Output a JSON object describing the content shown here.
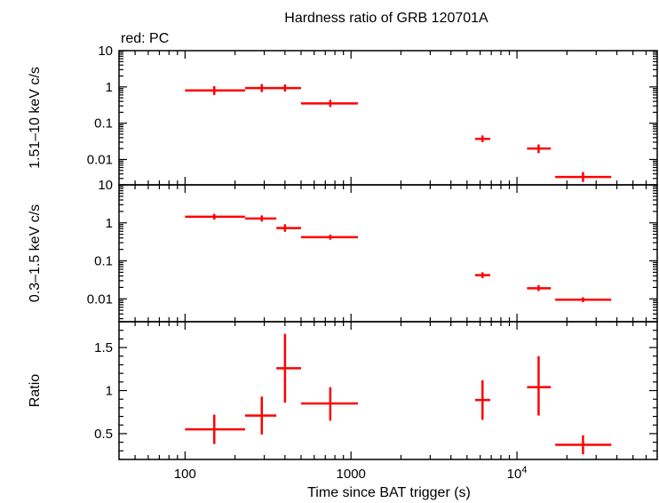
{
  "chart_data": {
    "type": "scatter",
    "title": "Hardness ratio of GRB 120701A",
    "legend": "red: PC",
    "series_color": "#ff0000",
    "xlabel": "Time since BAT trigger (s)",
    "xscale": "log",
    "xlim": [
      40,
      70000
    ],
    "xticks": [
      {
        "value": 100,
        "label": "100"
      },
      {
        "value": 1000,
        "label": "1000"
      },
      {
        "value": 10000,
        "label": "10",
        "sup": "4"
      }
    ],
    "panels": [
      {
        "name": "hard",
        "ylabel": "1.51–10 keV c/s",
        "yscale": "log",
        "ylim": [
          0.002,
          10
        ],
        "yticks": [
          {
            "value": 10,
            "label": "10"
          },
          {
            "value": 1,
            "label": "1"
          },
          {
            "value": 0.1,
            "label": "0.1"
          },
          {
            "value": 0.01,
            "label": "0.01"
          }
        ],
        "points": [
          {
            "x": 150,
            "xlo": 100,
            "xhi": 230,
            "y": 0.8,
            "ylo": 0.6,
            "yhi": 1.05
          },
          {
            "x": 290,
            "xlo": 230,
            "xhi": 355,
            "y": 0.93,
            "ylo": 0.72,
            "yhi": 1.2
          },
          {
            "x": 400,
            "xlo": 355,
            "xhi": 500,
            "y": 0.93,
            "ylo": 0.74,
            "yhi": 1.17
          },
          {
            "x": 750,
            "xlo": 500,
            "xhi": 1100,
            "y": 0.35,
            "ylo": 0.28,
            "yhi": 0.44
          },
          {
            "x": 6200,
            "xlo": 5600,
            "xhi": 6900,
            "y": 0.037,
            "ylo": 0.03,
            "yhi": 0.046
          },
          {
            "x": 13500,
            "xlo": 11500,
            "xhi": 16000,
            "y": 0.02,
            "ylo": 0.015,
            "yhi": 0.026
          },
          {
            "x": 25000,
            "xlo": 17000,
            "xhi": 37000,
            "y": 0.0033,
            "ylo": 0.0024,
            "yhi": 0.0045
          }
        ]
      },
      {
        "name": "soft",
        "ylabel": "0.3–1.5 keV c/s",
        "yscale": "log",
        "ylim": [
          0.0025,
          10
        ],
        "yticks": [
          {
            "value": 10,
            "label": "10"
          },
          {
            "value": 1,
            "label": "1"
          },
          {
            "value": 0.1,
            "label": "0.1"
          },
          {
            "value": 0.01,
            "label": "0.01"
          }
        ],
        "points": [
          {
            "x": 150,
            "xlo": 100,
            "xhi": 230,
            "y": 1.45,
            "ylo": 1.22,
            "yhi": 1.72
          },
          {
            "x": 290,
            "xlo": 230,
            "xhi": 355,
            "y": 1.3,
            "ylo": 1.08,
            "yhi": 1.57
          },
          {
            "x": 400,
            "xlo": 355,
            "xhi": 500,
            "y": 0.73,
            "ylo": 0.58,
            "yhi": 0.92
          },
          {
            "x": 750,
            "xlo": 500,
            "xhi": 1100,
            "y": 0.42,
            "ylo": 0.36,
            "yhi": 0.49
          },
          {
            "x": 6200,
            "xlo": 5600,
            "xhi": 6900,
            "y": 0.042,
            "ylo": 0.035,
            "yhi": 0.05
          },
          {
            "x": 13500,
            "xlo": 11500,
            "xhi": 16000,
            "y": 0.019,
            "ylo": 0.016,
            "yhi": 0.023
          },
          {
            "x": 25000,
            "xlo": 17000,
            "xhi": 37000,
            "y": 0.0095,
            "ylo": 0.0082,
            "yhi": 0.011
          }
        ]
      },
      {
        "name": "ratio",
        "ylabel": "Ratio",
        "yscale": "linear",
        "ylim": [
          0.2,
          1.8
        ],
        "yticks": [
          {
            "value": 1.5,
            "label": "1.5"
          },
          {
            "value": 1,
            "label": "1"
          },
          {
            "value": 0.5,
            "label": "0.5"
          }
        ],
        "points": [
          {
            "x": 150,
            "xlo": 100,
            "xhi": 230,
            "y": 0.55,
            "ylo": 0.38,
            "yhi": 0.72
          },
          {
            "x": 290,
            "xlo": 230,
            "xhi": 355,
            "y": 0.71,
            "ylo": 0.49,
            "yhi": 0.93
          },
          {
            "x": 400,
            "xlo": 355,
            "xhi": 500,
            "y": 1.26,
            "ylo": 0.86,
            "yhi": 1.66
          },
          {
            "x": 750,
            "xlo": 500,
            "xhi": 1100,
            "y": 0.85,
            "ylo": 0.65,
            "yhi": 1.04
          },
          {
            "x": 6200,
            "xlo": 5600,
            "xhi": 6900,
            "y": 0.89,
            "ylo": 0.66,
            "yhi": 1.12
          },
          {
            "x": 13500,
            "xlo": 11500,
            "xhi": 16000,
            "y": 1.04,
            "ylo": 0.71,
            "yhi": 1.4
          },
          {
            "x": 25000,
            "xlo": 17000,
            "xhi": 37000,
            "y": 0.37,
            "ylo": 0.26,
            "yhi": 0.48
          }
        ]
      }
    ]
  }
}
